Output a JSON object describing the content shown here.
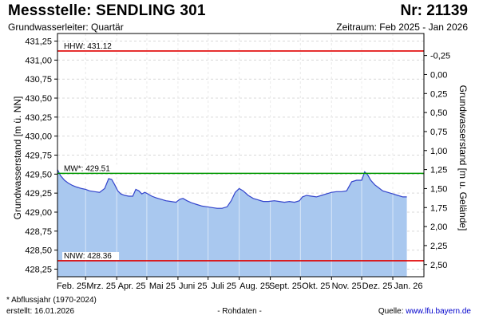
{
  "header": {
    "title": "Messstelle: SENDLING 301",
    "number": "Nr: 21139",
    "aquifer": "Grundwasserleiter: Quartär",
    "period": "Zeitraum: Feb 2025 - Jan 2026"
  },
  "footer": {
    "footnote": "* Abflussjahr (1970-2024)",
    "created": "erstellt:  16.01.2026",
    "raw_data": "- Rohdaten -",
    "source_prefix": "Quelle: ",
    "source_link": "www.lfu.bayern.de"
  },
  "chart_data": {
    "type": "area",
    "ylabel_left": "Grundwasserstand [m ü. NN]",
    "ylabel_right": "Grundwasserstand [m u. Gelände]",
    "ylim": [
      428.15,
      431.35
    ],
    "ylim_right": [
      2.66,
      -0.54
    ],
    "left_ticks": [
      "431,25",
      "431,00",
      "430,75",
      "430,50",
      "430,25",
      "430,00",
      "429,75",
      "429,50",
      "429,25",
      "429,00",
      "428,75",
      "428,50",
      "428,25"
    ],
    "right_ticks": [
      "-0,25",
      "0,00",
      "0,25",
      "0,50",
      "0,75",
      "1,00",
      "1,25",
      "1,50",
      "1,75",
      "2,00",
      "2,25",
      "2,50"
    ],
    "x_ticks": [
      "Feb. 25",
      "Mrz. 25",
      "Apr. 25",
      "Mai 25",
      "Juni 25",
      "Juli 25",
      "Aug. 25",
      "Sept. 25",
      "Okt. 25",
      "Nov. 25",
      "Dez. 25",
      "Jan. 26"
    ],
    "x_range": [
      "2025-02-01",
      "2026-01-31"
    ],
    "grid": true,
    "reference_lines": [
      {
        "label": "HHW: 431.12",
        "value": 431.12,
        "color": "#e00000"
      },
      {
        "label": "MW*: 429.51",
        "value": 429.51,
        "color": "#009900"
      },
      {
        "label": "NNW: 428.36",
        "value": 428.36,
        "color": "#e00000"
      }
    ],
    "series": [
      {
        "line_color": "#3344cc",
        "fill_color": "#a9c8ef",
        "x": [
          "2025-02-01",
          "2025-02-04",
          "2025-02-08",
          "2025-02-12",
          "2025-02-16",
          "2025-02-20",
          "2025-02-25",
          "2025-03-01",
          "2025-03-05",
          "2025-03-10",
          "2025-03-15",
          "2025-03-20",
          "2025-03-24",
          "2025-03-27",
          "2025-03-30",
          "2025-04-02",
          "2025-04-05",
          "2025-04-09",
          "2025-04-13",
          "2025-04-17",
          "2025-04-20",
          "2025-04-23",
          "2025-04-26",
          "2025-04-29",
          "2025-05-02",
          "2025-05-06",
          "2025-05-10",
          "2025-05-15",
          "2025-05-20",
          "2025-05-25",
          "2025-05-30",
          "2025-06-03",
          "2025-06-06",
          "2025-06-10",
          "2025-06-15",
          "2025-06-20",
          "2025-06-25",
          "2025-06-30",
          "2025-07-05",
          "2025-07-10",
          "2025-07-15",
          "2025-07-20",
          "2025-07-24",
          "2025-07-28",
          "2025-08-01",
          "2025-08-05",
          "2025-08-10",
          "2025-08-15",
          "2025-08-20",
          "2025-08-25",
          "2025-08-30",
          "2025-09-05",
          "2025-09-10",
          "2025-09-15",
          "2025-09-20",
          "2025-09-25",
          "2025-09-30",
          "2025-10-03",
          "2025-10-07",
          "2025-10-12",
          "2025-10-17",
          "2025-10-22",
          "2025-10-27",
          "2025-11-01",
          "2025-11-06",
          "2025-11-11",
          "2025-11-16",
          "2025-11-21",
          "2025-11-26",
          "2025-12-01",
          "2025-12-04",
          "2025-12-07",
          "2025-12-10",
          "2025-12-14",
          "2025-12-18",
          "2025-12-22",
          "2025-12-27",
          "2026-01-01",
          "2026-01-06",
          "2026-01-11",
          "2026-01-15"
        ],
        "y": [
          429.56,
          429.48,
          429.42,
          429.38,
          429.35,
          429.33,
          429.31,
          429.3,
          429.28,
          429.27,
          429.26,
          429.31,
          429.44,
          429.43,
          429.36,
          429.28,
          429.24,
          429.22,
          429.21,
          429.21,
          429.3,
          429.28,
          429.24,
          429.26,
          429.24,
          429.21,
          429.19,
          429.17,
          429.15,
          429.14,
          429.13,
          429.17,
          429.18,
          429.15,
          429.12,
          429.1,
          429.08,
          429.07,
          429.06,
          429.05,
          429.05,
          429.07,
          429.15,
          429.26,
          429.31,
          429.28,
          429.22,
          429.18,
          429.16,
          429.14,
          429.14,
          429.15,
          429.14,
          429.13,
          429.14,
          429.13,
          429.15,
          429.2,
          429.22,
          429.21,
          429.2,
          429.22,
          429.24,
          429.26,
          429.27,
          429.27,
          429.28,
          429.4,
          429.42,
          429.42,
          429.53,
          429.49,
          429.42,
          429.36,
          429.32,
          429.28,
          429.26,
          429.24,
          429.22,
          429.2,
          429.2
        ]
      }
    ]
  }
}
